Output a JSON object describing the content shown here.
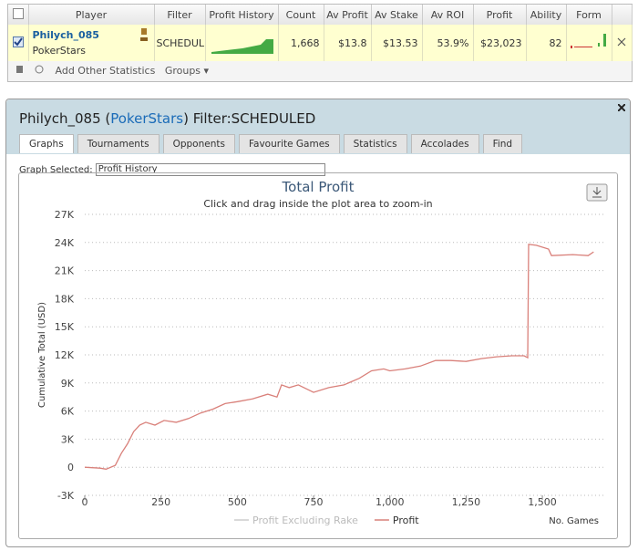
{
  "grid": {
    "columns": [
      "Player",
      "Filter",
      "Profit History",
      "Count",
      "Av Profit",
      "Av Stake",
      "Av ROI",
      "Profit",
      "Ability",
      "Form"
    ],
    "row": {
      "player": "Philych_085",
      "site": "PokerStars",
      "filter": "SCHEDULED",
      "count": "1,668",
      "av_profit": "$13.8",
      "av_stake": "$13.53",
      "av_roi": "53.9%",
      "profit": "$23,023",
      "ability": "82"
    },
    "toolbar": {
      "add": "Add Other Statistics",
      "groups": "Groups"
    }
  },
  "panel": {
    "title_prefix": "Philych_085 (",
    "site": "PokerStars",
    "title_suffix": ") Filter:SCHEDULED",
    "tabs": [
      "Graphs",
      "Tournaments",
      "Opponents",
      "Favourite Games",
      "Statistics",
      "Accolades",
      "Find"
    ],
    "graph_selected_label": "Graph Selected:",
    "graph_selected": "Profit History"
  },
  "chart_data": {
    "type": "line",
    "title": "Total Profit",
    "subtitle": "Click and drag inside the plot area to zoom-in",
    "y_label": "Cumulative Total (USD)",
    "x_label": "No. Games",
    "x": [
      0,
      50,
      70,
      100,
      120,
      140,
      160,
      180,
      200,
      230,
      260,
      300,
      340,
      380,
      420,
      460,
      500,
      550,
      600,
      630,
      645,
      670,
      700,
      750,
      800,
      850,
      900,
      940,
      980,
      1000,
      1050,
      1100,
      1150,
      1200,
      1250,
      1300,
      1350,
      1400,
      1440,
      1452,
      1455,
      1480,
      1520,
      1530,
      1600,
      1650,
      1668
    ],
    "series": [
      {
        "name": "Profit Excluding Rake",
        "color": "#cccccc",
        "visible": false
      },
      {
        "name": "Profit",
        "color": "#d9807a",
        "visible": true,
        "values": [
          0,
          -100,
          -200,
          200,
          1500,
          2500,
          3800,
          4500,
          4800,
          4500,
          5000,
          4800,
          5200,
          5800,
          6200,
          6800,
          7000,
          7300,
          7800,
          7500,
          8800,
          8500,
          8800,
          8000,
          8500,
          8800,
          9500,
          10300,
          10500,
          10300,
          10500,
          10800,
          11400,
          11400,
          11300,
          11600,
          11800,
          11900,
          11900,
          11700,
          23800,
          23700,
          23300,
          22600,
          22700,
          22600,
          23000
        ]
      }
    ],
    "xlim": [
      0,
      1700
    ],
    "ylim": [
      -3000,
      27000
    ],
    "xticks": [
      0,
      250,
      500,
      750,
      {
        "value": 1000,
        "label": "1,000"
      },
      {
        "value": 1250,
        "label": "1,250"
      },
      {
        "value": 1500,
        "label": "1,500"
      }
    ],
    "yticks": [
      {
        "value": -3000,
        "label": "-3K"
      },
      0,
      {
        "value": 3000,
        "label": "3K"
      },
      {
        "value": 6000,
        "label": "6K"
      },
      {
        "value": 9000,
        "label": "9K"
      },
      {
        "value": 12000,
        "label": "12K"
      },
      {
        "value": 15000,
        "label": "15K"
      },
      {
        "value": 18000,
        "label": "18K"
      },
      {
        "value": 21000,
        "label": "21K"
      },
      {
        "value": 24000,
        "label": "24K"
      },
      {
        "value": 27000,
        "label": "27K"
      }
    ],
    "grid": true
  }
}
